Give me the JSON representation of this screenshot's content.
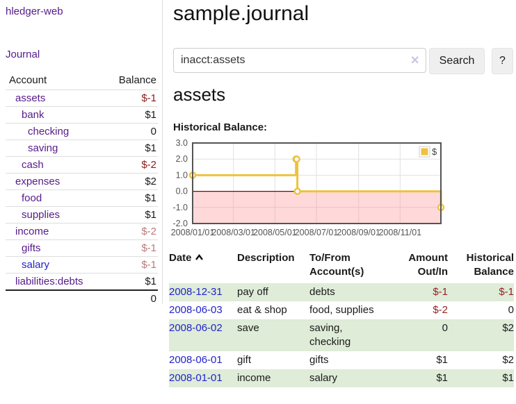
{
  "app": {
    "brand": "hledger-web",
    "nav": {
      "journal": "Journal"
    }
  },
  "colors": {
    "link_purple": "#551a8b",
    "link_blue": "#2222cc",
    "negative_red": "#8b1a1a",
    "negative_muted": "#ba7a7a",
    "row_stripe_green": "#deecd8",
    "series_yellow": "#edc240"
  },
  "sidebar": {
    "header": {
      "account": "Account",
      "balance": "Balance"
    },
    "accounts": [
      {
        "name": "assets",
        "balance": "$-1"
      },
      {
        "name": "bank",
        "balance": "$1"
      },
      {
        "name": "checking",
        "balance": "0"
      },
      {
        "name": "saving",
        "balance": "$1"
      },
      {
        "name": "cash",
        "balance": "$-2"
      },
      {
        "name": "expenses",
        "balance": "$2"
      },
      {
        "name": "food",
        "balance": "$1"
      },
      {
        "name": "supplies",
        "balance": "$1"
      },
      {
        "name": "income",
        "balance": "$-2"
      },
      {
        "name": "gifts",
        "balance": "$-1"
      },
      {
        "name": "salary",
        "balance": "$-1"
      },
      {
        "name": "liabilities:debts",
        "balance": "$1"
      }
    ],
    "total": "0"
  },
  "header": {
    "title": "sample.journal"
  },
  "search": {
    "value": "inacct:assets",
    "clear_icon": "✕",
    "button": "Search",
    "help_button": "?"
  },
  "account_page": {
    "title": "assets",
    "chart_label": "Historical Balance:"
  },
  "chart_data": {
    "type": "line",
    "step": true,
    "legend_label": "$",
    "legend_position": "top-right",
    "series": [
      {
        "name": "$",
        "color": "#edc240",
        "points": [
          {
            "date": "2008-01-01",
            "value": 1
          },
          {
            "date": "2008-06-01",
            "value": 2
          },
          {
            "date": "2008-06-02",
            "value": 2
          },
          {
            "date": "2008-06-03",
            "value": 0
          },
          {
            "date": "2008-12-31",
            "value": -1
          }
        ]
      }
    ],
    "x_range": [
      "2008-01-01",
      "2008-12-31"
    ],
    "x_tick_labels": [
      "2008/01/01",
      "2008/03/01",
      "2008/05/01",
      "2008/07/01",
      "2008/09/01",
      "2008/11/01"
    ],
    "y_tick_labels": [
      "3.0",
      "2.0",
      "1.0",
      "0.0",
      "-1.0",
      "-2.0"
    ],
    "ylim": [
      -2,
      3
    ],
    "grid": true,
    "negative_region": true
  },
  "register": {
    "columns": {
      "date": "Date",
      "description": "Description",
      "accounts_line1": "To/From",
      "accounts_line2": "Account(s)",
      "amount_line1": "Amount",
      "amount_line2": "Out/In",
      "balance_line1": "Historical",
      "balance_line2": "Balance"
    },
    "rows": [
      {
        "date": "2008-12-31",
        "description": "pay off",
        "accounts": "debts",
        "amount": "$-1",
        "balance": "$-1"
      },
      {
        "date": "2008-06-03",
        "description": "eat & shop",
        "accounts": "food, supplies",
        "amount": "$-2",
        "balance": "0"
      },
      {
        "date": "2008-06-02",
        "description": "save",
        "accounts": "saving, checking",
        "amount": "0",
        "balance": "$2"
      },
      {
        "date": "2008-06-01",
        "description": "gift",
        "accounts": "gifts",
        "amount": "$1",
        "balance": "$2"
      },
      {
        "date": "2008-01-01",
        "description": "income",
        "accounts": "salary",
        "amount": "$1",
        "balance": "$1"
      }
    ]
  }
}
